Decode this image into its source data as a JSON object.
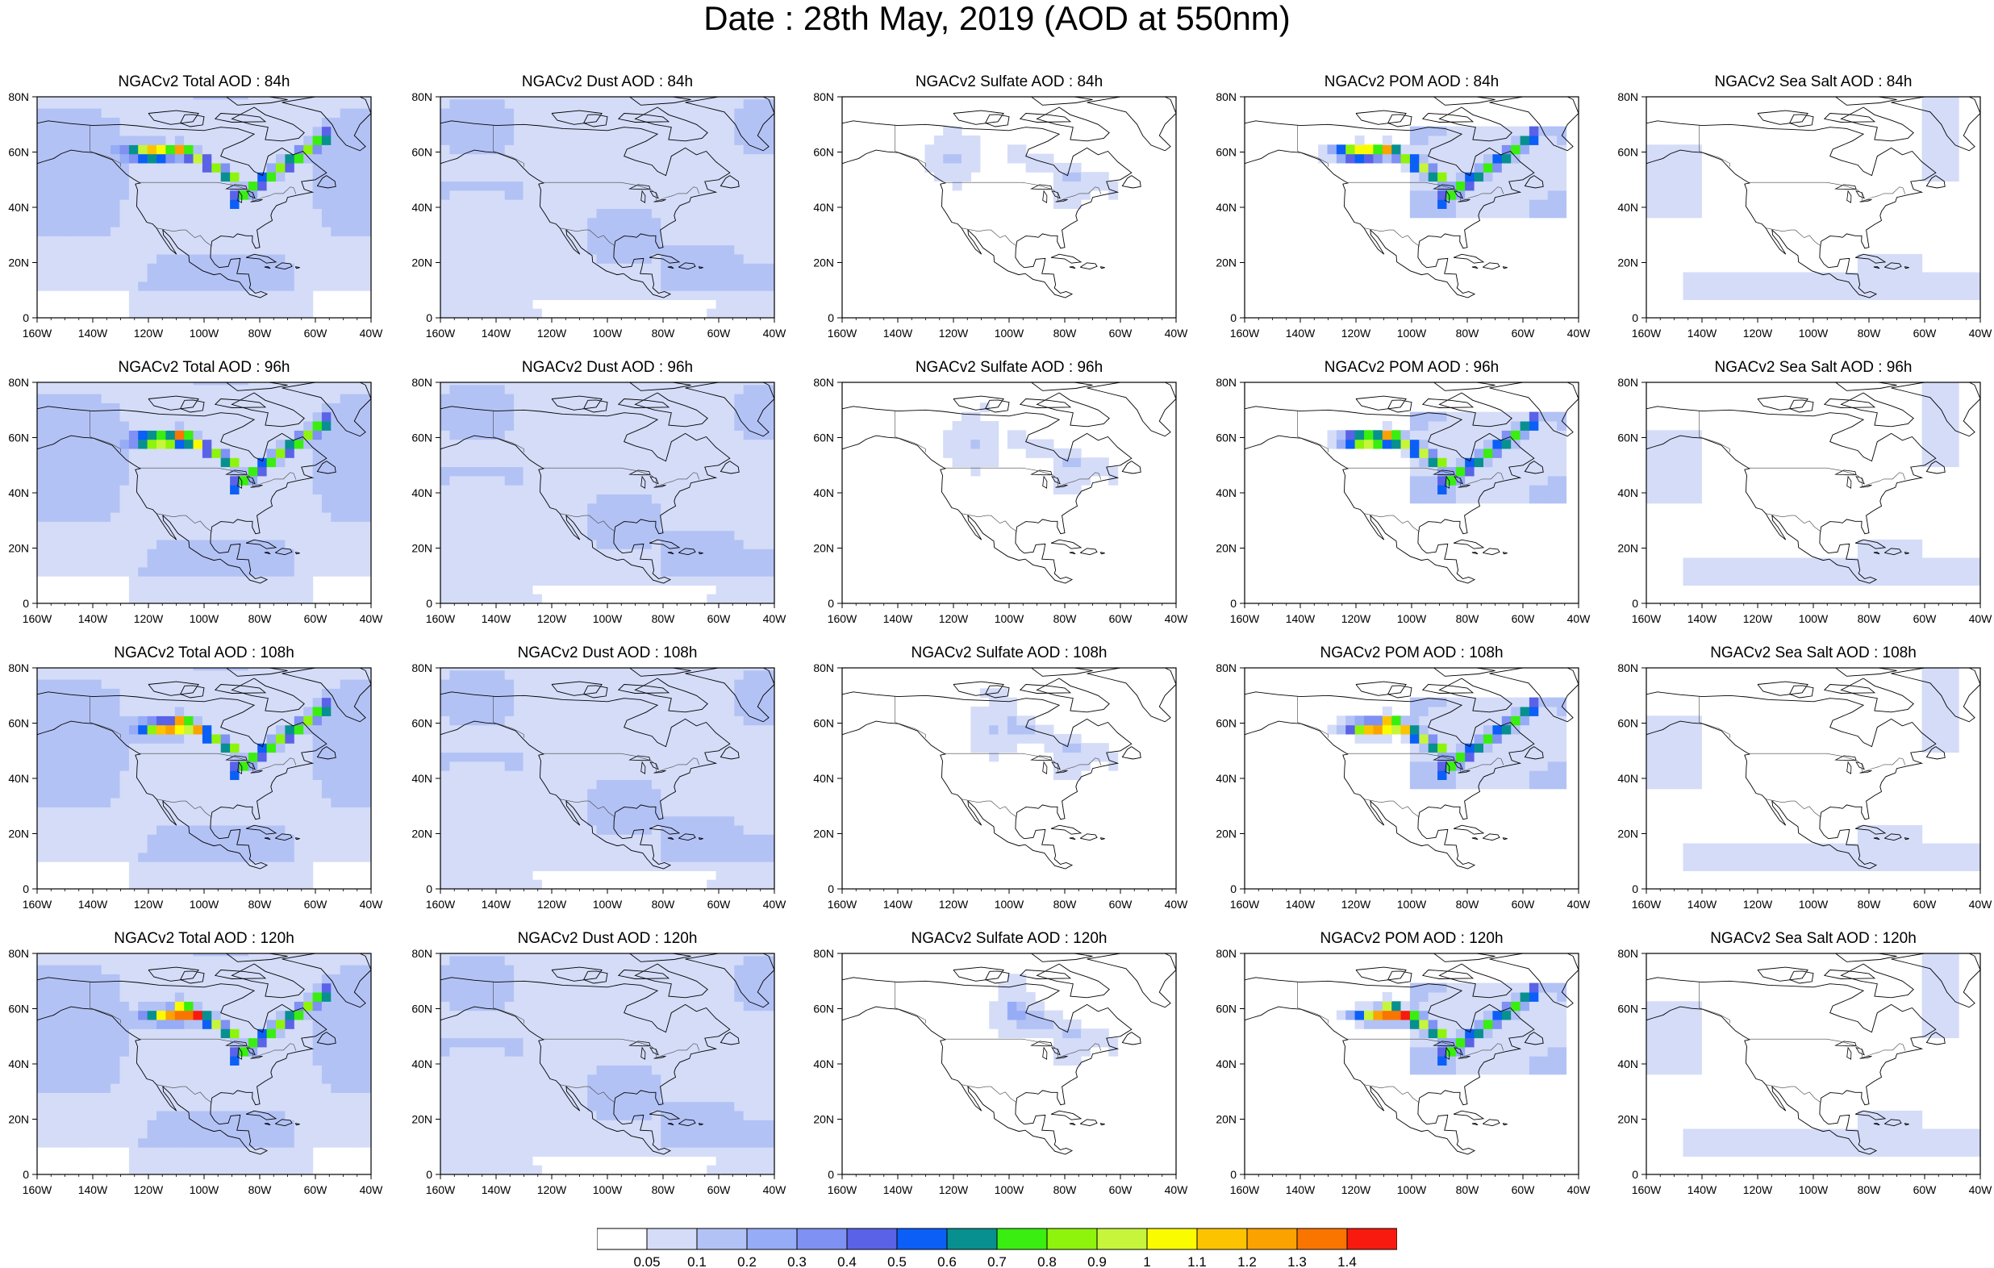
{
  "title": "Date : 28th May, 2019 (AOD at 550nm)",
  "panels": [
    [
      "NGACv2 Total AOD : 84h",
      "NGACv2 Dust AOD : 84h",
      "NGACv2 Sulfate AOD : 84h",
      "NGACv2 POM AOD : 84h",
      "NGACv2 Sea Salt AOD : 84h"
    ],
    [
      "NGACv2 Total AOD : 96h",
      "NGACv2 Dust AOD : 96h",
      "NGACv2 Sulfate AOD : 96h",
      "NGACv2 POM AOD : 96h",
      "NGACv2 Sea Salt AOD : 96h"
    ],
    [
      "NGACv2 Total AOD : 108h",
      "NGACv2 Dust AOD : 108h",
      "NGACv2 Sulfate AOD : 108h",
      "NGACv2 POM AOD : 108h",
      "NGACv2 Sea Salt AOD : 108h"
    ],
    [
      "NGACv2 Total AOD : 120h",
      "NGACv2 Dust AOD : 120h",
      "NGACv2 Sulfate AOD : 120h",
      "NGACv2 POM AOD : 120h",
      "NGACv2 Sea Salt  AOD : 120h"
    ]
  ],
  "axes": {
    "x_ticks": [
      "160W",
      "140W",
      "120W",
      "100W",
      "80W",
      "60W",
      "40W"
    ],
    "y_ticks": [
      "0",
      "20N",
      "40N",
      "60N",
      "80N"
    ],
    "lon_range": [
      -160,
      -40
    ],
    "lat_range": [
      0,
      80
    ]
  },
  "colorbar": {
    "labels": [
      "0.05",
      "0.1",
      "0.2",
      "0.3",
      "0.4",
      "0.5",
      "0.6",
      "0.7",
      "0.8",
      "0.9",
      "1",
      "1.1",
      "1.2",
      "1.3",
      "1.4"
    ],
    "colors": [
      "#ffffff",
      "#d4dcf8",
      "#b3c2f5",
      "#96acf6",
      "#7f91f2",
      "#5a62e8",
      "#0b5ff7",
      "#089090",
      "#39ee10",
      "#8ef40c",
      "#c6f53c",
      "#fbfb00",
      "#fcc400",
      "#fca200",
      "#fa7400",
      "#f81a0e"
    ]
  }
}
